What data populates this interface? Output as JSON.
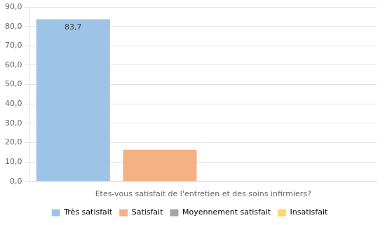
{
  "chart_data": {
    "type": "bar",
    "categories": [
      "Très satisfait",
      "Satisfait",
      "Moyennement satisfait",
      "Insatisfait"
    ],
    "values": [
      83.7,
      16.3,
      0,
      0
    ],
    "value_labels": [
      "83,7",
      null,
      null,
      null
    ],
    "colors": [
      "#9dc3e6",
      "#f4b183",
      "#a5a5a5",
      "#ffd966"
    ],
    "xlabel": "Etes-vous satisfait de l'entretien et des soins infirmiers?",
    "ylim": [
      0,
      90
    ],
    "yticks": [
      {
        "value": 0,
        "label": "0,0"
      },
      {
        "value": 10,
        "label": "10,0"
      },
      {
        "value": 20,
        "label": "20,0"
      },
      {
        "value": 30,
        "label": "30,0"
      },
      {
        "value": 40,
        "label": "40,0"
      },
      {
        "value": 50,
        "label": "50,0"
      },
      {
        "value": 60,
        "label": "60,0"
      },
      {
        "value": 70,
        "label": "70,0"
      },
      {
        "value": 80,
        "label": "80,0"
      },
      {
        "value": 90,
        "label": "90,0"
      }
    ],
    "grid": true,
    "legend": "bottom",
    "tick_labels": "y"
  }
}
